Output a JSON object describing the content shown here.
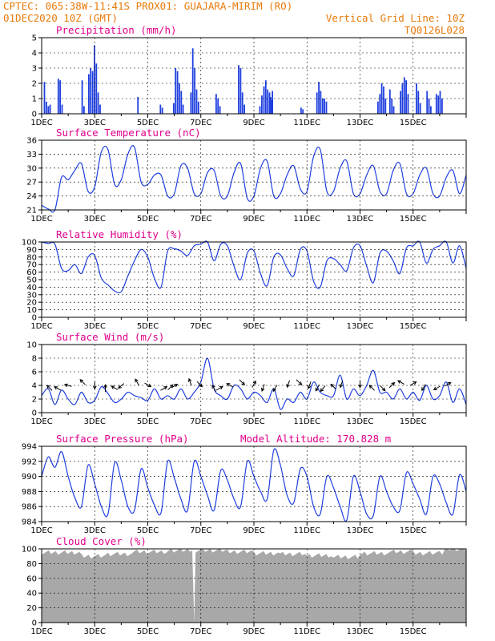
{
  "header": {
    "line1_left": "CPTEC:   065:38W-11:41S   PROX01: GUAJARA-MIRIM (RO)",
    "line2_left": "01DEC2020 10Z (GMT)",
    "line2_right": "Vertical Grid Line: 10Z",
    "line3_right": "TQ0126L028"
  },
  "colors": {
    "header": "#e87a0a",
    "title": "#e0008c",
    "series": "#1f3fe0",
    "cloud": "#a8a8a8"
  },
  "x_ticks": [
    "1DEC",
    "3DEC",
    "5DEC",
    "7DEC",
    "9DEC",
    "11DEC",
    "13DEC",
    "15DEC"
  ],
  "chart_data": [
    {
      "type": "bar",
      "title": "Precipitation (mm/h)",
      "ylim": [
        0,
        5
      ],
      "yticks": [
        "0",
        "1",
        "2",
        "3",
        "4",
        "5"
      ],
      "events": [
        {
          "day": 0.08,
          "values": [
            2.1,
            0.8,
            0.5,
            0.6
          ]
        },
        {
          "day": 0.6,
          "values": [
            2.3,
            2.2,
            0.6
          ]
        },
        {
          "day": 1.5,
          "values": [
            2.2,
            0.5
          ]
        },
        {
          "day": 1.75,
          "values": [
            2.6,
            3.0,
            2.8,
            4.5,
            3.3,
            1.4,
            0.6
          ]
        },
        {
          "day": 3.6,
          "values": [
            1.1
          ]
        },
        {
          "day": 4.45,
          "values": [
            0.6,
            0.4
          ]
        },
        {
          "day": 4.95,
          "values": [
            0.7,
            3.0,
            2.8,
            2.0,
            1.5,
            0.6
          ]
        },
        {
          "day": 5.6,
          "values": [
            1.4,
            4.3,
            3.0,
            1.6,
            0.8
          ]
        },
        {
          "day": 6.55,
          "values": [
            1.3,
            1.0,
            0.5
          ]
        },
        {
          "day": 7.4,
          "values": [
            3.2,
            3.0,
            1.4,
            0.6
          ]
        },
        {
          "day": 8.2,
          "values": [
            0.5,
            1.2
          ]
        },
        {
          "day": 8.35,
          "values": [
            1.8,
            2.2,
            1.6,
            1.4,
            0.9
          ]
        },
        {
          "day": 8.6,
          "values": [
            1.1,
            1.5
          ]
        },
        {
          "day": 9.75,
          "values": [
            0.4,
            0.3
          ]
        },
        {
          "day": 10.35,
          "values": [
            1.4,
            2.1,
            1.5,
            1.0,
            1.0,
            0.8
          ]
        },
        {
          "day": 12.65,
          "values": [
            0.8,
            1.3,
            2.0,
            1.8,
            1.0
          ]
        },
        {
          "day": 13.1,
          "values": [
            1.6,
            1.0,
            0.5
          ]
        },
        {
          "day": 13.5,
          "values": [
            1.5,
            2.0,
            2.4,
            2.2,
            1.3
          ]
        },
        {
          "day": 14.1,
          "values": [
            2.0,
            1.5,
            0.7
          ]
        },
        {
          "day": 14.5,
          "values": [
            1.5,
            1.0,
            0.5
          ]
        },
        {
          "day": 14.85,
          "values": [
            1.3,
            1.2,
            1.5,
            1.0
          ]
        }
      ]
    },
    {
      "type": "line",
      "title": "Surface Temperature (nC)",
      "ylim": [
        21,
        36
      ],
      "yticks": [
        "21",
        "24",
        "27",
        "30",
        "33",
        "36"
      ],
      "daily": [
        [
          22.0,
          21.2,
          21.0,
          28.0
        ],
        [
          27.5,
          29.5,
          31.0,
          25.0
        ],
        [
          26.0,
          33.5,
          34.0,
          26.5
        ],
        [
          27.5,
          33.0,
          34.5,
          27.0
        ],
        [
          26.5,
          28.5,
          28.5,
          24.0
        ],
        [
          24.5,
          30.5,
          30.0,
          24.5
        ],
        [
          24.5,
          29.0,
          29.5,
          24.0
        ],
        [
          24.0,
          29.0,
          31.0,
          23.5
        ],
        [
          24.0,
          30.0,
          31.5,
          24.0
        ],
        [
          24.5,
          28.5,
          30.5,
          25.5
        ],
        [
          25.0,
          32.5,
          34.0,
          25.0
        ],
        [
          25.0,
          30.0,
          31.5,
          24.5
        ],
        [
          24.5,
          28.5,
          30.5,
          25.0
        ],
        [
          24.5,
          29.5,
          31.0,
          24.5
        ],
        [
          24.5,
          28.5,
          30.0,
          24.5
        ],
        [
          24.0,
          28.0,
          29.5,
          24.5
        ],
        [
          28.5
        ]
      ]
    },
    {
      "type": "line",
      "title": "Relative Humidity (%)",
      "ylim": [
        0,
        100
      ],
      "yticks": [
        "0",
        "10",
        "20",
        "30",
        "40",
        "50",
        "60",
        "70",
        "80",
        "90",
        "100"
      ],
      "daily": [
        [
          100,
          98,
          97,
          65
        ],
        [
          62,
          70,
          58,
          80
        ],
        [
          82,
          52,
          43,
          35
        ],
        [
          34,
          55,
          75,
          90
        ],
        [
          80,
          52,
          40,
          88
        ],
        [
          91,
          88,
          82,
          95
        ],
        [
          97,
          100,
          75,
          97
        ],
        [
          95,
          68,
          50,
          85
        ],
        [
          88,
          58,
          42,
          80
        ],
        [
          83,
          65,
          55,
          90
        ],
        [
          88,
          48,
          40,
          75
        ],
        [
          78,
          70,
          62,
          92
        ],
        [
          95,
          68,
          46,
          85
        ],
        [
          88,
          75,
          58,
          92
        ],
        [
          95,
          100,
          72,
          90
        ],
        [
          95,
          100,
          72,
          95
        ],
        [
          65
        ]
      ]
    },
    {
      "type": "line",
      "title": "Surface Wind (m/s)",
      "ylim": [
        0,
        10
      ],
      "yticks": [
        "0",
        "2",
        "4",
        "6",
        "8",
        "10"
      ],
      "daily": [
        [
          2.5,
          3.5,
          1.2,
          3.3
        ],
        [
          2.0,
          1.2,
          3.0,
          1.5
        ],
        [
          1.8,
          3.8,
          2.8,
          1.5
        ],
        [
          2.0,
          3.0,
          2.5,
          2.2
        ],
        [
          1.8,
          3.5,
          2.0,
          2.5
        ],
        [
          2.0,
          3.5,
          2.0,
          3.0
        ],
        [
          4.5,
          8.0,
          3.5,
          2.5
        ],
        [
          2.0,
          4.0,
          3.5,
          2.0
        ],
        [
          3.0,
          2.5,
          1.5,
          3.5
        ],
        [
          0.5,
          2.0,
          1.5,
          3.0
        ],
        [
          2.0,
          4.5,
          3.0,
          2.5
        ],
        [
          2.5,
          5.5,
          2.0,
          3.5
        ],
        [
          2.5,
          4.0,
          6.2,
          3.0
        ],
        [
          3.0,
          2.0,
          3.5,
          2.0
        ],
        [
          3.0,
          1.8,
          4.0,
          2.0
        ],
        [
          2.5,
          4.5,
          1.5,
          3.5
        ],
        [
          1.2
        ]
      ],
      "arrows": [
        [
          0.3,
          315
        ],
        [
          0.6,
          300
        ],
        [
          1.0,
          285
        ],
        [
          1.55,
          315
        ],
        [
          2.0,
          180
        ],
        [
          2.4,
          0
        ],
        [
          2.75,
          300
        ],
        [
          3.0,
          230
        ],
        [
          3.6,
          330
        ],
        [
          4.0,
          120
        ],
        [
          4.6,
          60
        ],
        [
          4.85,
          45
        ],
        [
          5.0,
          60
        ],
        [
          5.6,
          340
        ],
        [
          5.95,
          135
        ],
        [
          6.5,
          330
        ],
        [
          6.7,
          60
        ],
        [
          7.1,
          300
        ],
        [
          7.55,
          135
        ],
        [
          8.0,
          30
        ],
        [
          8.35,
          200
        ],
        [
          8.8,
          210
        ],
        [
          9.3,
          200
        ],
        [
          9.7,
          135
        ],
        [
          10.1,
          200
        ],
        [
          10.4,
          210
        ],
        [
          10.6,
          220
        ],
        [
          11.0,
          315
        ],
        [
          11.3,
          200
        ],
        [
          12.0,
          180
        ],
        [
          12.45,
          315
        ],
        [
          12.85,
          135
        ],
        [
          13.2,
          45
        ],
        [
          13.55,
          300
        ],
        [
          14.0,
          60
        ],
        [
          14.4,
          210
        ],
        [
          14.9,
          240
        ],
        [
          15.3,
          60
        ]
      ]
    },
    {
      "type": "line",
      "title": "Surface Pressure (hPa)",
      "annotation": "Model Altitude: 170.828 m",
      "ylim": [
        984,
        994
      ],
      "yticks": [
        "984",
        "986",
        "988",
        "990",
        "992",
        "994"
      ],
      "daily": [
        [
          990.0,
          992.6,
          991.2,
          993.3
        ],
        [
          990.0,
          987.2,
          986.0,
          991.5
        ],
        [
          989.0,
          986.0,
          985.0,
          991.8
        ],
        [
          989.5,
          986.0,
          985.5,
          991.0
        ],
        [
          988.5,
          986.2,
          985.2,
          992.0
        ],
        [
          989.8,
          987.0,
          985.5,
          992.0
        ],
        [
          990.0,
          987.5,
          985.5,
          990.8
        ],
        [
          989.5,
          987.0,
          986.0,
          992.0
        ],
        [
          990.0,
          988.0,
          987.0,
          993.5
        ],
        [
          991.5,
          987.5,
          986.5,
          991.0
        ],
        [
          990.0,
          986.0,
          985.0,
          990.0
        ],
        [
          988.5,
          986.0,
          984.2,
          990.0
        ],
        [
          988.0,
          985.0,
          984.8,
          990.0
        ],
        [
          988.0,
          986.0,
          985.5,
          990.5
        ],
        [
          989.0,
          987.0,
          985.0,
          990.0
        ],
        [
          989.0,
          986.5,
          985.0,
          990.2
        ],
        [
          988.0
        ]
      ]
    },
    {
      "type": "area",
      "title": "Cloud Cover (%)",
      "ylim": [
        0,
        100
      ],
      "yticks": [
        "0",
        "20",
        "40",
        "60",
        "80",
        "100"
      ],
      "levels": [
        [
          0,
          95
        ],
        [
          1.5,
          90
        ],
        [
          2.5,
          93
        ],
        [
          3.5,
          96
        ],
        [
          4.8,
          98
        ],
        [
          5.6,
          97
        ],
        [
          5.75,
          0
        ],
        [
          5.8,
          98
        ],
        [
          7.0,
          96
        ],
        [
          8.0,
          94
        ],
        [
          9.0,
          93
        ],
        [
          10.0,
          91
        ],
        [
          11.0,
          89
        ],
        [
          12.0,
          94
        ],
        [
          13.0,
          96
        ],
        [
          14.0,
          94
        ],
        [
          15.0,
          95
        ],
        [
          15.2,
          100
        ],
        [
          16.0,
          97
        ]
      ]
    }
  ]
}
